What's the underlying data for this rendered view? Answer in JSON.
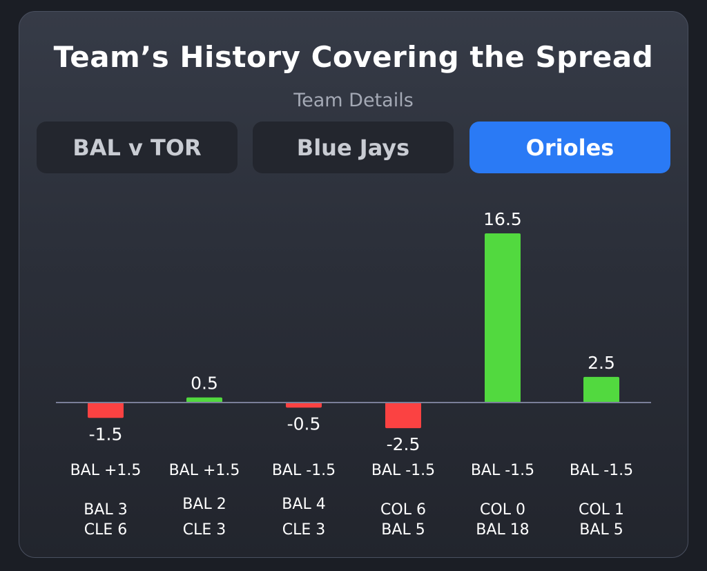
{
  "header": {
    "title": "Team’s History Covering the Spread",
    "subtitle": "Team Details"
  },
  "tabs": [
    {
      "label": "BAL v TOR",
      "active": false
    },
    {
      "label": "Blue Jays",
      "active": false
    },
    {
      "label": "Orioles",
      "active": true
    }
  ],
  "colors": {
    "positive": "#52d93f",
    "negative": "#fb4242",
    "accent": "#2a7af5",
    "baseline": "#7a7f99"
  },
  "chart_data": {
    "type": "bar",
    "categories": [
      "BAL +1.5",
      "BAL +1.5",
      "BAL -1.5",
      "BAL -1.5",
      "BAL -1.5",
      "BAL -1.5"
    ],
    "values": [
      -1.5,
      0.5,
      -0.5,
      -2.5,
      16.5,
      2.5
    ],
    "value_labels": [
      "-1.5",
      "0.5",
      "-0.5",
      "-2.5",
      "16.5",
      "2.5"
    ],
    "scores": [
      [
        "BAL 3",
        "CLE 6"
      ],
      [
        "BAL 2",
        "CLE 3"
      ],
      [
        "BAL 4",
        "CLE 3"
      ],
      [
        "COL 6",
        "BAL 5"
      ],
      [
        "COL 0",
        "BAL 18"
      ],
      [
        "COL 1",
        "BAL 5"
      ]
    ],
    "xlabel": "",
    "ylabel": "",
    "grid": false,
    "legend": "none"
  }
}
